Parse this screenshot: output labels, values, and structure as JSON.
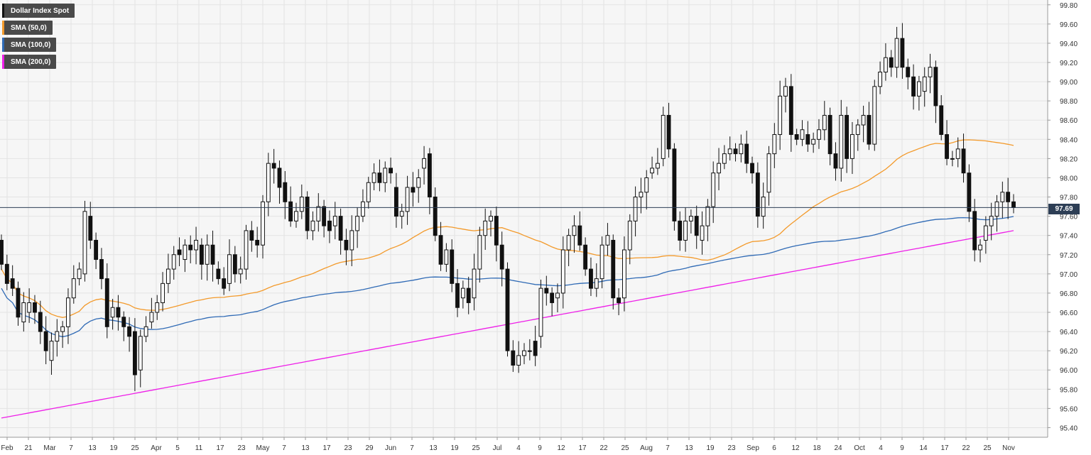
{
  "chart_data": {
    "type": "candlestick",
    "instrument": "Dollar Index Spot",
    "ylim": [
      95.3,
      99.85
    ],
    "y_ticks": [
      "99.80",
      "99.60",
      "99.40",
      "99.20",
      "99.00",
      "98.80",
      "98.60",
      "98.40",
      "98.20",
      "98.00",
      "97.80",
      "97.60",
      "97.40",
      "97.20",
      "97.00",
      "96.80",
      "96.60",
      "96.40",
      "96.20",
      "96.00",
      "95.80",
      "95.60",
      "95.40"
    ],
    "x_ticks": [
      "Feb",
      "21",
      "Mar",
      "7",
      "13",
      "19",
      "25",
      "Apr",
      "5",
      "11",
      "17",
      "23",
      "May",
      "7",
      "13",
      "17",
      "23",
      "29",
      "Jun",
      "7",
      "13",
      "19",
      "25",
      "Jul",
      "4",
      "9",
      "12",
      "17",
      "22",
      "25",
      "Aug",
      "7",
      "13",
      "19",
      "23",
      "Sep",
      "6",
      "12",
      "18",
      "24",
      "Oct",
      "4",
      "9",
      "14",
      "17",
      "22",
      "25",
      "Nov"
    ],
    "current_price": "97.69",
    "current_price_value": 97.69,
    "legend": [
      {
        "label": "Dollar Index Spot",
        "color": "#111111"
      },
      {
        "label": "SMA (50,0)",
        "color": "#f39a2b"
      },
      {
        "label": "SMA (100,0)",
        "color": "#2f6ab5"
      },
      {
        "label": "SMA (200,0)",
        "color": "#ee1fe8"
      }
    ],
    "candles": [
      [
        97.35,
        97.1
      ],
      [
        97.1,
        96.9
      ],
      [
        96.95,
        96.85
      ],
      [
        96.85,
        96.55
      ],
      [
        96.5,
        96.7
      ],
      [
        96.6,
        96.7
      ],
      [
        96.7,
        96.6
      ],
      [
        96.6,
        96.4
      ],
      [
        96.4,
        96.2
      ],
      [
        96.1,
        96.3
      ],
      [
        96.3,
        96.4
      ],
      [
        96.4,
        96.45
      ],
      [
        96.45,
        96.75
      ],
      [
        96.75,
        96.95
      ],
      [
        96.95,
        97.05
      ],
      [
        97.0,
        97.65
      ],
      [
        97.6,
        97.35
      ],
      [
        97.35,
        97.15
      ],
      [
        97.15,
        96.95
      ],
      [
        96.95,
        96.45
      ],
      [
        96.55,
        96.65
      ],
      [
        96.65,
        96.55
      ],
      [
        96.55,
        96.45
      ],
      [
        96.45,
        96.35
      ],
      [
        96.4,
        95.95
      ],
      [
        96.0,
        96.35
      ],
      [
        96.35,
        96.45
      ],
      [
        96.5,
        96.6
      ],
      [
        96.6,
        96.7
      ],
      [
        96.7,
        96.9
      ],
      [
        96.9,
        97.05
      ],
      [
        97.05,
        97.2
      ],
      [
        97.25,
        97.2
      ],
      [
        97.15,
        97.3
      ],
      [
        97.3,
        97.25
      ],
      [
        97.25,
        97.35
      ],
      [
        97.3,
        97.1
      ],
      [
        97.1,
        97.3
      ],
      [
        97.3,
        97.1
      ],
      [
        97.05,
        96.95
      ],
      [
        96.95,
        96.85
      ],
      [
        96.9,
        97.2
      ],
      [
        97.2,
        97.0
      ],
      [
        97.0,
        97.05
      ],
      [
        97.05,
        97.45
      ],
      [
        97.45,
        97.35
      ],
      [
        97.35,
        97.3
      ],
      [
        97.3,
        97.75
      ],
      [
        97.75,
        98.15
      ],
      [
        98.15,
        98.1
      ],
      [
        98.1,
        97.9
      ],
      [
        97.95,
        97.75
      ],
      [
        97.75,
        97.55
      ],
      [
        97.55,
        97.65
      ],
      [
        97.65,
        97.8
      ],
      [
        97.8,
        97.45
      ],
      [
        97.45,
        97.55
      ],
      [
        97.55,
        97.7
      ],
      [
        97.7,
        97.5
      ],
      [
        97.55,
        97.45
      ],
      [
        97.5,
        97.6
      ],
      [
        97.6,
        97.35
      ],
      [
        97.35,
        97.25
      ],
      [
        97.25,
        97.45
      ],
      [
        97.45,
        97.6
      ],
      [
        97.6,
        97.75
      ],
      [
        97.75,
        97.95
      ],
      [
        97.95,
        98.05
      ],
      [
        98.05,
        97.95
      ],
      [
        97.95,
        98.1
      ],
      [
        98.1,
        98.05
      ],
      [
        97.9,
        97.6
      ],
      [
        97.6,
        97.65
      ],
      [
        97.65,
        97.9
      ],
      [
        97.9,
        97.85
      ],
      [
        97.9,
        98.0
      ],
      [
        98.1,
        98.2
      ],
      [
        98.25,
        97.8
      ],
      [
        97.8,
        97.4
      ],
      [
        97.4,
        97.1
      ],
      [
        97.1,
        97.25
      ],
      [
        97.25,
        96.9
      ],
      [
        96.9,
        96.65
      ],
      [
        96.75,
        96.85
      ],
      [
        96.85,
        96.7
      ],
      [
        96.75,
        97.05
      ],
      [
        97.05,
        97.4
      ],
      [
        97.4,
        97.55
      ],
      [
        97.55,
        97.6
      ],
      [
        97.6,
        97.3
      ],
      [
        97.3,
        97.05
      ],
      [
        97.05,
        96.2
      ],
      [
        96.2,
        96.05
      ],
      [
        96.05,
        96.15
      ],
      [
        96.15,
        96.2
      ],
      [
        96.2,
        96.2
      ],
      [
        96.3,
        96.15
      ],
      [
        96.35,
        96.85
      ],
      [
        96.85,
        96.8
      ],
      [
        96.8,
        96.7
      ],
      [
        96.75,
        96.8
      ],
      [
        96.8,
        97.25
      ],
      [
        97.25,
        97.4
      ],
      [
        97.4,
        97.5
      ],
      [
        97.5,
        97.3
      ],
      [
        97.3,
        97.05
      ],
      [
        97.05,
        96.85
      ],
      [
        96.85,
        96.95
      ],
      [
        96.95,
        97.3
      ],
      [
        97.3,
        97.4
      ],
      [
        97.35,
        96.75
      ],
      [
        96.75,
        96.7
      ],
      [
        96.75,
        97.25
      ],
      [
        97.25,
        97.55
      ],
      [
        97.55,
        97.8
      ],
      [
        97.8,
        97.85
      ],
      [
        97.85,
        98.0
      ],
      [
        98.05,
        98.1
      ],
      [
        98.1,
        98.15
      ],
      [
        98.2,
        98.65
      ],
      [
        98.65,
        98.3
      ],
      [
        98.3,
        97.55
      ],
      [
        97.55,
        97.35
      ],
      [
        97.35,
        97.55
      ],
      [
        97.55,
        97.6
      ],
      [
        97.6,
        97.4
      ],
      [
        97.35,
        97.5
      ],
      [
        97.5,
        97.7
      ],
      [
        97.7,
        98.05
      ],
      [
        98.05,
        98.15
      ],
      [
        98.15,
        98.25
      ],
      [
        98.25,
        98.3
      ],
      [
        98.3,
        98.25
      ],
      [
        98.25,
        98.35
      ],
      [
        98.35,
        98.15
      ],
      [
        98.15,
        98.05
      ],
      [
        98.05,
        97.6
      ],
      [
        97.6,
        97.8
      ],
      [
        97.85,
        98.25
      ],
      [
        98.25,
        98.45
      ],
      [
        98.45,
        98.85
      ],
      [
        98.85,
        98.95
      ],
      [
        98.95,
        98.45
      ],
      [
        98.45,
        98.4
      ],
      [
        98.4,
        98.5
      ],
      [
        98.45,
        98.35
      ],
      [
        98.35,
        98.4
      ],
      [
        98.4,
        98.5
      ],
      [
        98.5,
        98.65
      ],
      [
        98.65,
        98.25
      ],
      [
        98.25,
        98.1
      ],
      [
        98.1,
        98.65
      ],
      [
        98.65,
        98.2
      ],
      [
        98.2,
        98.45
      ],
      [
        98.45,
        98.55
      ],
      [
        98.55,
        98.65
      ],
      [
        98.65,
        98.35
      ],
      [
        98.35,
        98.95
      ],
      [
        98.95,
        99.1
      ],
      [
        99.1,
        99.25
      ],
      [
        99.25,
        99.15
      ],
      [
        99.15,
        99.45
      ],
      [
        99.45,
        99.15
      ],
      [
        99.15,
        99.05
      ],
      [
        99.05,
        98.85
      ],
      [
        98.85,
        99.0
      ],
      [
        98.9,
        99.05
      ],
      [
        99.05,
        99.15
      ],
      [
        99.15,
        98.75
      ],
      [
        98.75,
        98.45
      ],
      [
        98.45,
        98.2
      ],
      [
        98.2,
        98.2
      ],
      [
        98.2,
        98.3
      ],
      [
        98.3,
        98.05
      ],
      [
        98.05,
        97.65
      ],
      [
        97.65,
        97.25
      ],
      [
        97.25,
        97.3
      ],
      [
        97.35,
        97.5
      ],
      [
        97.5,
        97.6
      ],
      [
        97.6,
        97.75
      ],
      [
        97.75,
        97.85
      ],
      [
        97.85,
        97.75
      ],
      [
        97.75,
        97.69
      ]
    ]
  }
}
